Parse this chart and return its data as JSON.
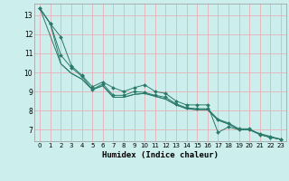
{
  "xlabel": "Humidex (Indice chaleur)",
  "bg_color": "#cceeed",
  "line_color": "#2a7a6a",
  "grid_color_minor": "#e8b0b8",
  "grid_color_major": "#e8b0b8",
  "xlim": [
    -0.5,
    23.5
  ],
  "ylim": [
    6.4,
    13.6
  ],
  "xticks": [
    0,
    1,
    2,
    3,
    4,
    5,
    6,
    7,
    8,
    9,
    10,
    11,
    12,
    13,
    14,
    15,
    16,
    17,
    18,
    19,
    20,
    21,
    22,
    23
  ],
  "yticks": [
    7,
    8,
    9,
    10,
    11,
    12,
    13
  ],
  "series": [
    {
      "x": [
        0,
        1,
        2,
        3,
        4,
        5,
        6,
        7,
        8,
        9,
        10,
        11,
        12,
        13,
        14,
        15,
        16,
        17,
        18,
        19,
        20,
        21,
        22,
        23
      ],
      "y": [
        13.35,
        12.55,
        11.85,
        10.35,
        9.85,
        9.25,
        9.5,
        9.2,
        9.0,
        9.2,
        9.35,
        9.0,
        8.9,
        8.5,
        8.3,
        8.3,
        8.3,
        6.85,
        7.15,
        7.0,
        7.0,
        6.8,
        6.65,
        6.5
      ],
      "marker": true
    },
    {
      "x": [
        0,
        1,
        2,
        3,
        4,
        5,
        6,
        7,
        8,
        9,
        10,
        11,
        12,
        13,
        14,
        15,
        16,
        17,
        18,
        19,
        20,
        21,
        22,
        23
      ],
      "y": [
        13.35,
        12.55,
        10.9,
        10.25,
        9.8,
        9.1,
        9.4,
        8.8,
        8.8,
        9.0,
        8.95,
        8.8,
        8.7,
        8.35,
        8.15,
        8.1,
        8.1,
        7.55,
        7.35,
        7.05,
        7.05,
        6.75,
        6.6,
        6.5
      ],
      "marker": true
    },
    {
      "x": [
        0,
        2,
        3,
        4,
        5,
        6,
        7,
        8,
        9,
        10,
        11,
        12,
        13,
        14,
        15,
        16,
        17,
        18,
        19,
        20,
        21,
        22,
        23
      ],
      "y": [
        13.35,
        10.45,
        9.95,
        9.65,
        9.1,
        9.3,
        8.7,
        8.7,
        8.85,
        8.9,
        8.75,
        8.6,
        8.3,
        8.1,
        8.05,
        8.05,
        7.5,
        7.3,
        7.0,
        7.0,
        6.75,
        6.6,
        6.5
      ],
      "marker": false
    },
    {
      "x": [
        0,
        1,
        2,
        3,
        4,
        5,
        6,
        7,
        8,
        9,
        10,
        11,
        12,
        13,
        14,
        15,
        16,
        17,
        18,
        19,
        20,
        21,
        22,
        23
      ],
      "y": [
        13.35,
        12.55,
        10.45,
        9.95,
        9.65,
        9.1,
        9.3,
        8.7,
        8.7,
        8.85,
        8.9,
        8.75,
        8.6,
        8.3,
        8.1,
        8.05,
        8.05,
        7.5,
        7.3,
        7.0,
        7.0,
        6.75,
        6.6,
        6.5
      ],
      "marker": false
    }
  ]
}
